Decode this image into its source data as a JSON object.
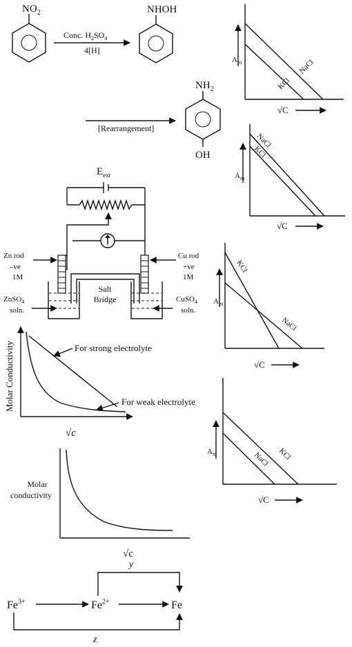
{
  "reaction": {
    "nitro_group": "NO",
    "nitro_sub": "2",
    "reagent_a": "Conc. H",
    "reagent_a_sub": "2",
    "reagent_b": "SO",
    "reagent_b_sub": "4",
    "reducer": "4[H]",
    "product_group": "NHOH",
    "rearrangement": "[Rearrangement]",
    "amine_group": "NH",
    "amine_sub": "2",
    "hydroxy_group": "OH"
  },
  "cell": {
    "e_ext": "E",
    "e_ext_sub": "ext",
    "left_rod": [
      "Zn rod",
      "–ve",
      "1M"
    ],
    "left_soln": "ZnSO",
    "left_soln_sub": "4",
    "left_soln2": "soln.",
    "right_rod": [
      "Cu rod",
      "+ve",
      "1M"
    ],
    "right_soln": "CuSO",
    "right_soln_sub": "4",
    "right_soln2": "soln.",
    "bridge": [
      "Salt",
      "Bridge"
    ]
  },
  "graph_strong_weak": {
    "ylabel": "Molar Conductivity",
    "xlabel": "√c",
    "strong_label": "For strong electrolyte",
    "weak_label": "For weak electrolyte"
  },
  "graph_molar": {
    "ylabel": [
      "Molar",
      "conductivity"
    ],
    "xlabel": "√c",
    "caption": "y"
  },
  "iron": {
    "fe3": "Fe",
    "fe3_sup": "3+",
    "fe2": "Fe",
    "fe2_sup": "2+",
    "fe": "Fe",
    "caption": "z"
  },
  "option_graphs": [
    {
      "ylabel": "A",
      "ylabel_sub": "m",
      "xlabel": "√C",
      "line_labels": [
        "KCl",
        "NaCl"
      ]
    },
    {
      "ylabel": "A",
      "ylabel_sub": "m",
      "xlabel": "√C",
      "line_labels": [
        "NaCl",
        "KCl"
      ]
    },
    {
      "ylabel": "A",
      "ylabel_sub": "m",
      "xlabel": "√C",
      "line_labels": [
        "KCl",
        "NaCl"
      ]
    },
    {
      "ylabel": "A",
      "ylabel_sub": "m",
      "xlabel": "√C",
      "line_labels": [
        "KCl",
        "NaCl"
      ]
    }
  ]
}
